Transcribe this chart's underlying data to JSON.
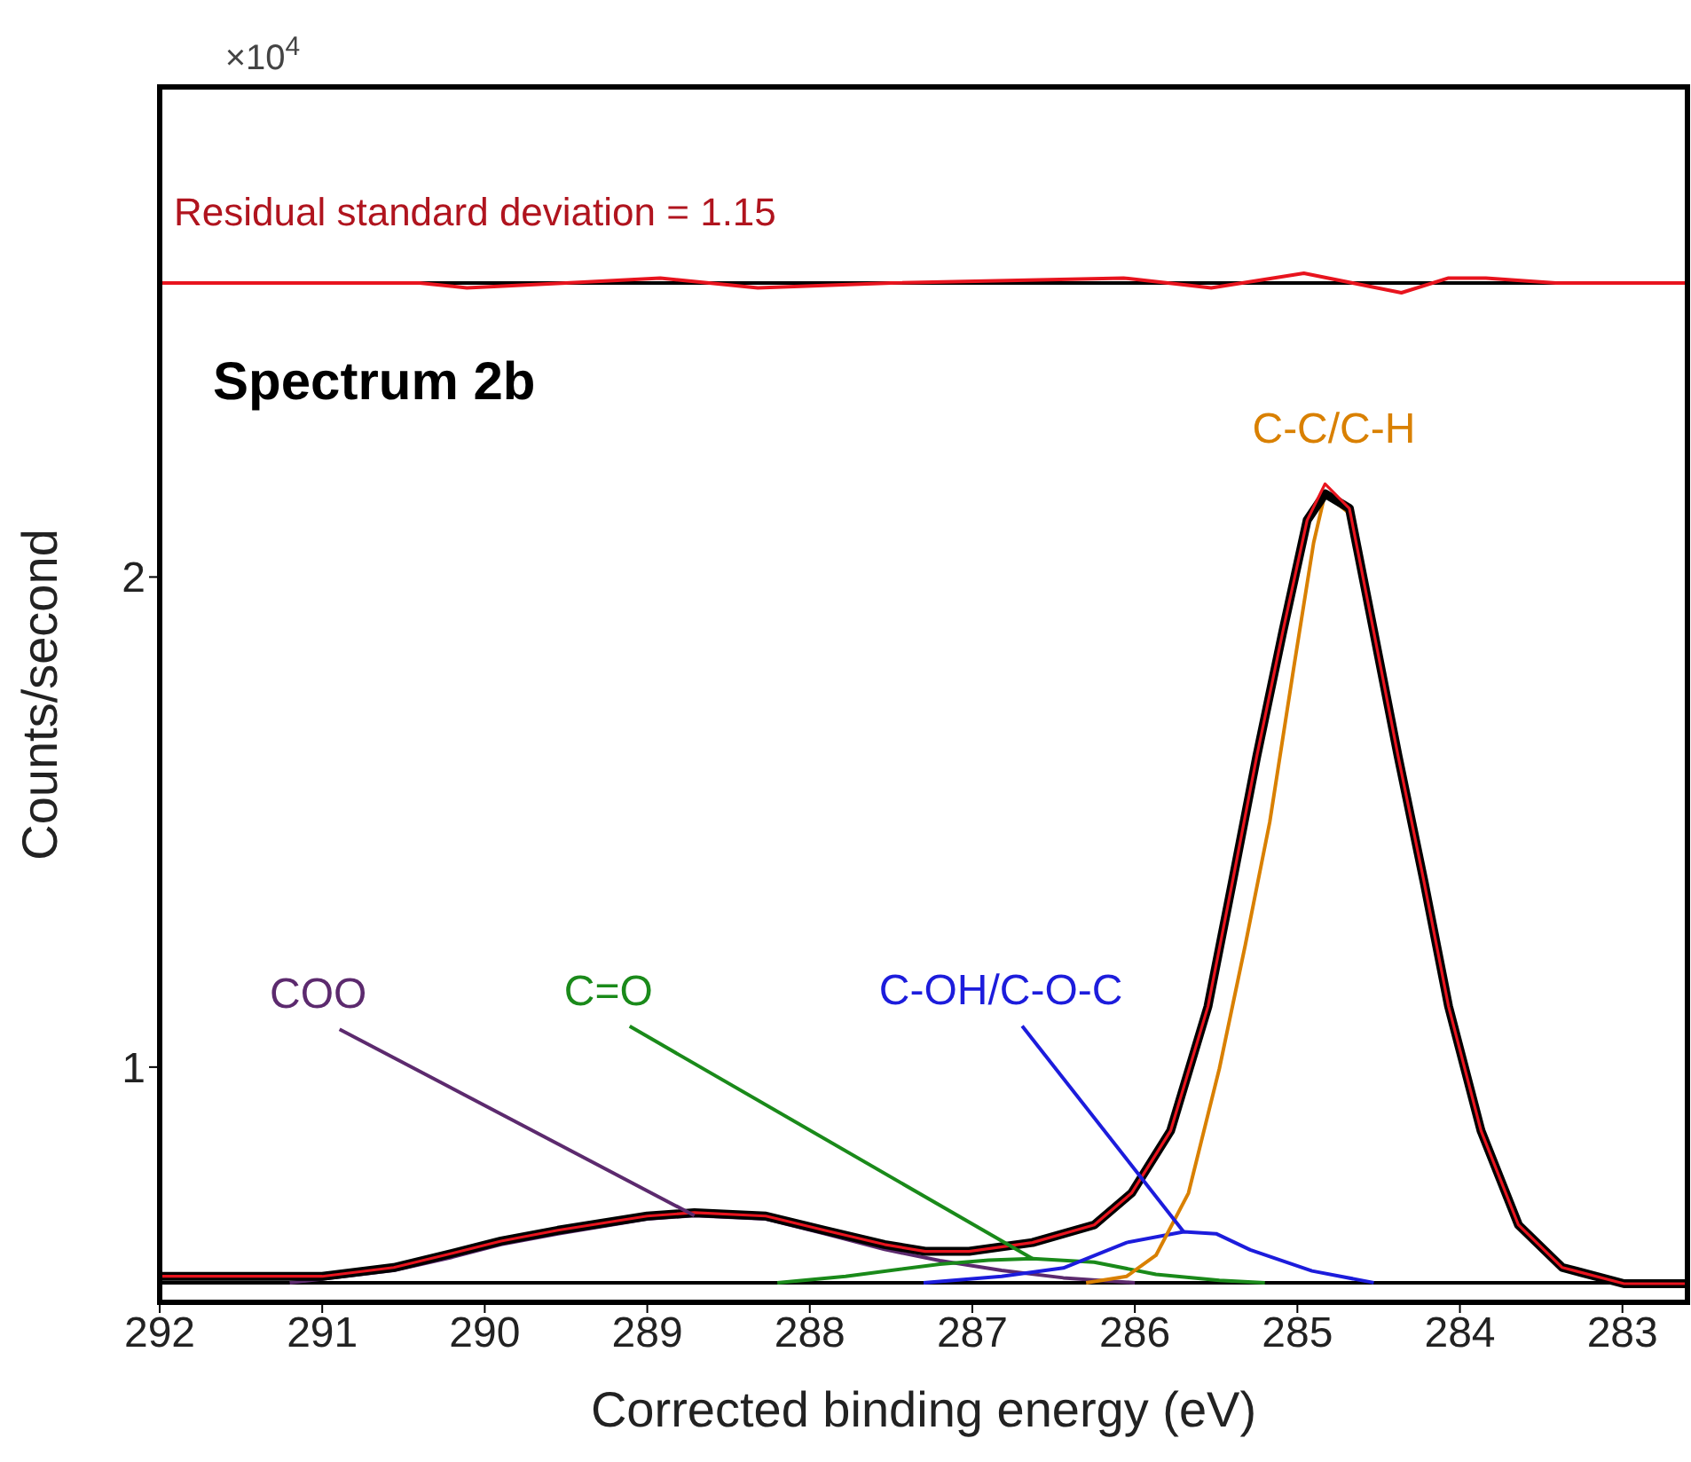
{
  "chart_data": {
    "type": "line",
    "title": "Spectrum 2b",
    "xlabel": "Corrected binding energy (eV)",
    "ylabel": "Counts/second",
    "annotations": [
      "×10$^{4}$",
      "Residual standard deviation = 1.15"
    ],
    "xlim": [
      292,
      282.6
    ],
    "xticks": [
      292,
      291,
      290,
      289,
      288,
      287,
      286,
      285,
      284,
      283
    ],
    "ylim": [
      0.52,
      3.0
    ],
    "yticks": [
      1,
      2
    ],
    "grid": false,
    "legend": false,
    "marker": "none",
    "line_style": "solid",
    "ref_lines": [
      {
        "axis": "y",
        "value": 0.56,
        "color": "#000000"
      },
      {
        "axis": "y",
        "value": 2.6,
        "color": "#000000"
      }
    ],
    "series": [
      {
        "name": "COO",
        "color": "#5c2a6e",
        "x": [
          291.2,
          290.56,
          290.2,
          289.9,
          289.55,
          289.0,
          288.71,
          288.27,
          287.91,
          287.54,
          287.2,
          286.82,
          286.44,
          286.0
        ],
        "values": [
          0.56,
          0.585,
          0.612,
          0.638,
          0.66,
          0.69,
          0.697,
          0.69,
          0.66,
          0.628,
          0.605,
          0.585,
          0.57,
          0.56
        ]
      },
      {
        "name": "C=O",
        "color": "#1a8a1a",
        "x": [
          288.2,
          287.78,
          287.2,
          286.9,
          286.63,
          286.25,
          285.87,
          285.48,
          285.2
        ],
        "values": [
          0.56,
          0.573,
          0.598,
          0.606,
          0.609,
          0.602,
          0.577,
          0.565,
          0.56
        ]
      },
      {
        "name": "C-OH/C-O-C",
        "color": "#1c1cdc",
        "x": [
          287.3,
          286.82,
          286.44,
          286.05,
          285.7,
          285.5,
          285.29,
          284.91,
          284.53
        ],
        "values": [
          0.56,
          0.573,
          0.59,
          0.642,
          0.664,
          0.66,
          0.627,
          0.584,
          0.56
        ]
      },
      {
        "name": "C-C/C-H",
        "color": "#d98000",
        "x": [
          286.3,
          286.05,
          285.87,
          285.67,
          285.48,
          285.32,
          285.17,
          285.02,
          284.9,
          284.83,
          284.68,
          284.53
        ],
        "values": [
          0.56,
          0.573,
          0.616,
          0.743,
          0.997,
          1.25,
          1.5,
          1.82,
          2.07,
          2.17,
          2.13,
          1.888
        ]
      },
      {
        "color": "#000000",
        "x": [
          292,
          291,
          290.56,
          290.2,
          289.9,
          289.55,
          289.0,
          288.71,
          288.27,
          287.91,
          287.54,
          287.29,
          287.02,
          286.63,
          286.25,
          286.02,
          285.78,
          285.55,
          285.4,
          285.25,
          285.09,
          284.94,
          284.83,
          284.68,
          284.53,
          284.38,
          284.22,
          284.07,
          283.87,
          283.64,
          283.37,
          282.99,
          282.6
        ],
        "values": [
          0.573,
          0.573,
          0.591,
          0.62,
          0.645,
          0.667,
          0.696,
          0.703,
          0.696,
          0.667,
          0.638,
          0.624,
          0.624,
          0.642,
          0.678,
          0.743,
          0.87,
          1.124,
          1.377,
          1.634,
          1.888,
          2.116,
          2.17,
          2.14,
          1.888,
          1.634,
          1.377,
          1.124,
          0.87,
          0.678,
          0.591,
          0.558,
          0.558
        ]
      },
      {
        "color": "#e8141e",
        "x": [
          292,
          291,
          290.56,
          290.2,
          289.9,
          289.55,
          289.0,
          288.71,
          288.27,
          287.91,
          287.54,
          287.29,
          287.02,
          286.63,
          286.25,
          286.02,
          285.78,
          285.55,
          285.4,
          285.25,
          285.09,
          284.94,
          284.83,
          284.68,
          284.53,
          284.38,
          284.22,
          284.07,
          283.87,
          283.64,
          283.37,
          282.99,
          282.6
        ],
        "values": [
          0.573,
          0.573,
          0.591,
          0.62,
          0.645,
          0.667,
          0.696,
          0.703,
          0.696,
          0.667,
          0.638,
          0.624,
          0.624,
          0.642,
          0.678,
          0.743,
          0.87,
          1.124,
          1.377,
          1.634,
          1.888,
          2.116,
          2.19,
          2.14,
          1.888,
          1.634,
          1.377,
          1.124,
          0.87,
          0.678,
          0.591,
          0.558,
          0.558
        ]
      },
      {
        "color": "#e8141e",
        "x": [
          292,
          291,
          290.4,
          290.11,
          289.5,
          288.92,
          288.32,
          287.5,
          286.07,
          285.53,
          284.96,
          284.66,
          284.36,
          284.07,
          283.84,
          283.41,
          282.6
        ],
        "values": [
          2.6,
          2.6,
          2.6,
          2.59,
          2.6,
          2.61,
          2.59,
          2.6,
          2.61,
          2.59,
          2.62,
          2.6,
          2.58,
          2.61,
          2.61,
          2.6,
          2.6
        ]
      }
    ]
  }
}
